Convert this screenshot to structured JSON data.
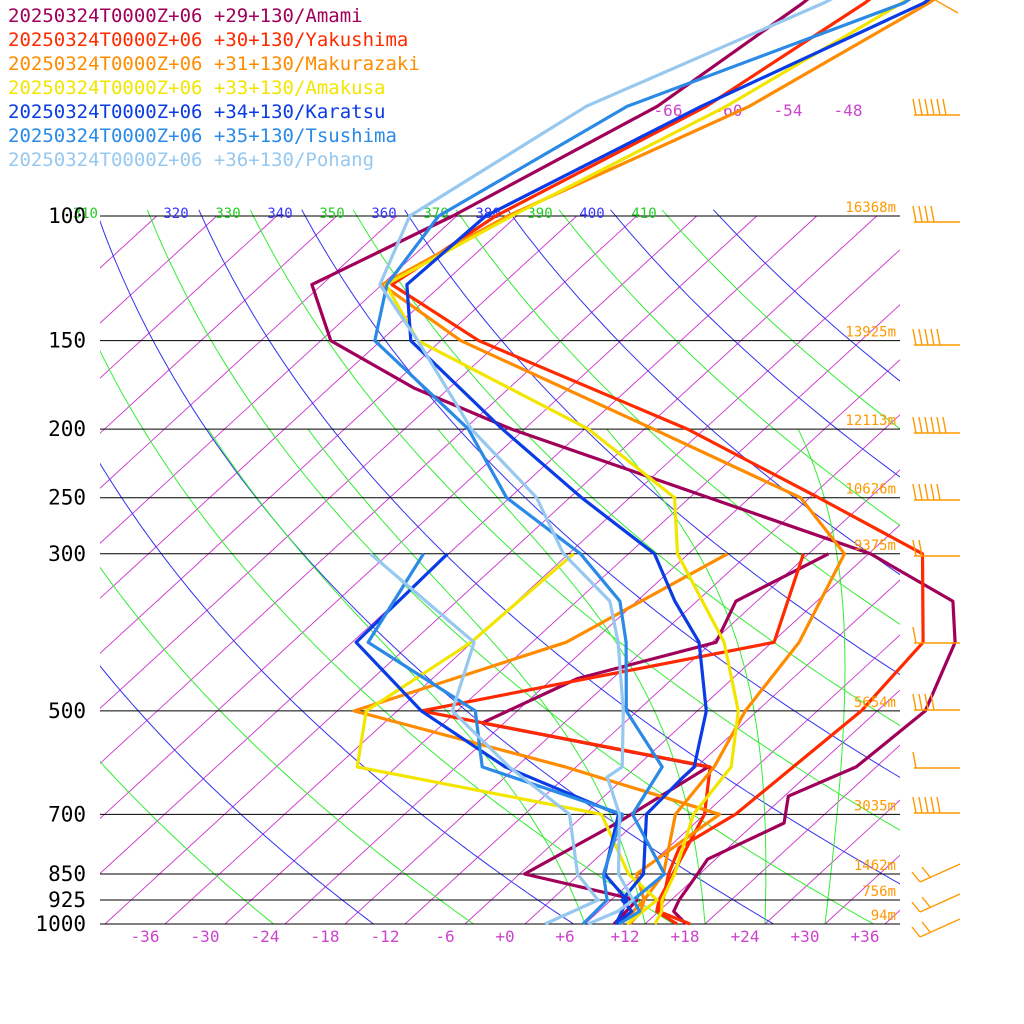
{
  "legend": [
    {
      "text": "20250324T0000Z+06 +29+130/Amami",
      "color": "#a0005a"
    },
    {
      "text": "20250324T0000Z+06 +30+130/Yakushima",
      "color": "#ff2a00"
    },
    {
      "text": "20250324T0000Z+06 +31+130/Makurazaki",
      "color": "#ff8c00"
    },
    {
      "text": "20250324T0000Z+06 +33+130/Amakusa",
      "color": "#f2e600"
    },
    {
      "text": "20250324T0000Z+06 +34+130/Karatsu",
      "color": "#0a3ce6"
    },
    {
      "text": "20250324T0000Z+06 +35+130/Tsushima",
      "color": "#2a8ae6"
    },
    {
      "text": "20250324T0000Z+06 +36+130/Pohang",
      "color": "#96c8f0"
    }
  ],
  "chart_data": {
    "type": "line",
    "title": "",
    "y_axis": {
      "type": "log-pressure",
      "ylim_hpa": [
        1000,
        100
      ]
    },
    "x_axis": {
      "type": "skewed temperature",
      "xlim_c": [
        -40,
        40
      ]
    },
    "pressure_labels": [
      "100",
      "150",
      "200",
      "250",
      "300",
      "500",
      "700",
      "850",
      "925",
      "1000"
    ],
    "pressure_levels": [
      100,
      150,
      200,
      250,
      300,
      500,
      700,
      850,
      925,
      1000
    ],
    "temp_tick_labels": [
      "-36",
      "-30",
      "-24",
      "-18",
      "-12",
      "-6",
      "+0",
      "+6",
      "+12",
      "+18",
      "+24",
      "+30",
      "+36"
    ],
    "temp_ticks": [
      -36,
      -30,
      -24,
      -18,
      -12,
      -6,
      0,
      6,
      12,
      18,
      24,
      30,
      36
    ],
    "upper_isotherm_labels": [
      "-66",
      "-60",
      "-54",
      "-48"
    ],
    "height_labels": [
      {
        "p": 100,
        "text": "16368m"
      },
      {
        "p": 150,
        "text": "13925m"
      },
      {
        "p": 200,
        "text": "12113m"
      },
      {
        "p": 250,
        "text": "10626m"
      },
      {
        "p": 300,
        "text": "9375m"
      },
      {
        "p": 500,
        "text": "5654m"
      },
      {
        "p": 700,
        "text": "3035m"
      },
      {
        "p": 850,
        "text": "1462m"
      },
      {
        "p": 925,
        "text": "756m"
      },
      {
        "p": 1000,
        "text": "94m"
      }
    ],
    "theta_labels": [
      {
        "text": "310",
        "color": "#22cc22"
      },
      {
        "text": "320",
        "color": "#3333ff"
      },
      {
        "text": "330",
        "color": "#22cc22"
      },
      {
        "text": "340",
        "color": "#3333ff"
      },
      {
        "text": "350",
        "color": "#22cc22"
      },
      {
        "text": "360",
        "color": "#3333ff"
      },
      {
        "text": "370",
        "color": "#22cc22"
      },
      {
        "text": "380",
        "color": "#3333ff"
      },
      {
        "text": "390",
        "color": "#22cc22"
      },
      {
        "text": "400",
        "color": "#3333ff"
      },
      {
        "text": "410",
        "color": "#22cc22"
      }
    ],
    "series": [
      {
        "name": "20250324T0000Z+06 +29+130/Amami",
        "color": "#a0005a",
        "T": [
          [
            1000,
            18.1
          ],
          [
            960,
            15.5
          ],
          [
            925,
            14.8
          ],
          [
            850,
            13.8
          ],
          [
            810,
            13.2
          ],
          [
            720,
            16.9
          ],
          [
            660,
            14.4
          ],
          [
            600,
            18
          ],
          [
            500,
            18.8
          ],
          [
            400,
            14.3
          ],
          [
            350,
            9.6
          ],
          [
            300,
            -3.8
          ],
          [
            200,
            -53.3
          ],
          [
            175,
            -67.5
          ],
          [
            150,
            -81
          ],
          [
            125,
            -89
          ],
          [
            100,
            -82.4
          ],
          [
            70,
            -73.9
          ],
          [
            50,
            -70.6
          ],
          [
            40,
            -69.5
          ],
          [
            30,
            -66
          ]
        ],
        "Td": [
          [
            1000,
            10.9
          ],
          [
            925,
            10.6
          ],
          [
            850,
            -3.5
          ],
          [
            720,
            0.2
          ],
          [
            600,
            3.2
          ],
          [
            520,
            -24.2
          ],
          [
            450,
            -19.5
          ],
          [
            400,
            -9.6
          ],
          [
            350,
            -12.1
          ],
          [
            300,
            -8
          ]
        ]
      },
      {
        "name": "20250324T0000Z+06 +30+130/Yakushima",
        "color": "#ff2a00",
        "T": [
          [
            1000,
            18.5
          ],
          [
            960,
            14
          ],
          [
            925,
            13.2
          ],
          [
            850,
            10.9
          ],
          [
            780,
            9.1
          ],
          [
            700,
            11.1
          ],
          [
            500,
            12.4
          ],
          [
            400,
            11.1
          ],
          [
            300,
            1.4
          ],
          [
            250,
            -15.1
          ],
          [
            200,
            -35.7
          ],
          [
            150,
            -66.2
          ],
          [
            125,
            -81
          ],
          [
            100,
            -78.1
          ],
          [
            70,
            -69
          ],
          [
            50,
            -64.4
          ],
          [
            40,
            -63
          ],
          [
            30,
            -58
          ]
        ],
        "Td": [
          [
            1000,
            17.2
          ],
          [
            960,
            13.8
          ],
          [
            925,
            12.8
          ],
          [
            700,
            8
          ],
          [
            600,
            3.4
          ],
          [
            500,
            -31.6
          ],
          [
            400,
            -3.8
          ],
          [
            300,
            -10.5
          ]
        ]
      },
      {
        "name": "20250324T0000Z+06 +31+130/Makurazaki",
        "color": "#ff8c00",
        "T": [
          [
            1000,
            12.5
          ],
          [
            960,
            12.2
          ],
          [
            925,
            11.3
          ],
          [
            850,
            10.4
          ],
          [
            700,
            5.1
          ],
          [
            600,
            3.8
          ],
          [
            500,
            0.8
          ],
          [
            400,
            -1.3
          ],
          [
            300,
            -6.4
          ],
          [
            250,
            -16.9
          ],
          [
            200,
            -39.1
          ],
          [
            150,
            -68
          ],
          [
            125,
            -82
          ],
          [
            100,
            -76.9
          ],
          [
            70,
            -64.7
          ],
          [
            50,
            -58
          ],
          [
            40,
            -55.8
          ],
          [
            30,
            -52
          ]
        ],
        "Td": [
          [
            1000,
            11.6
          ],
          [
            925,
            11.3
          ],
          [
            850,
            7.7
          ],
          [
            700,
            9.5
          ],
          [
            600,
            -11.1
          ],
          [
            500,
            -38.3
          ],
          [
            400,
            -24.6
          ],
          [
            300,
            -18.1
          ]
        ]
      },
      {
        "name": "20250324T0000Z+06 +33+130/Amakusa",
        "color": "#f2e600",
        "T": [
          [
            1000,
            15
          ],
          [
            960,
            14.3
          ],
          [
            925,
            13.1
          ],
          [
            850,
            11.5
          ],
          [
            700,
            6.9
          ],
          [
            600,
            5.5
          ],
          [
            500,
            0.1
          ],
          [
            400,
            -8.8
          ],
          [
            300,
            -23.1
          ],
          [
            250,
            -29.5
          ],
          [
            200,
            -45.6
          ],
          [
            150,
            -72.3
          ],
          [
            125,
            -81.6
          ],
          [
            100,
            -76.5
          ],
          [
            70,
            -67
          ],
          [
            50,
            -60.7
          ],
          [
            40,
            -58
          ],
          [
            30,
            -54
          ]
        ],
        "Td": [
          [
            1000,
            12.2
          ],
          [
            925,
            12.6
          ],
          [
            850,
            6.9
          ],
          [
            700,
            -2.3
          ],
          [
            600,
            -31.9
          ],
          [
            500,
            -37.1
          ],
          [
            400,
            -34.1
          ],
          [
            300,
            -33.5
          ]
        ]
      },
      {
        "name": "20250324T0000Z+06 +34+130/Karatsu",
        "color": "#0a3ce6",
        "T": [
          [
            1000,
            11.1
          ],
          [
            960,
            11.3
          ],
          [
            925,
            9.1
          ],
          [
            850,
            8.4
          ],
          [
            700,
            2.2
          ],
          [
            620,
            1.8
          ],
          [
            600,
            1.8
          ],
          [
            500,
            -3.1
          ],
          [
            400,
            -11.3
          ],
          [
            350,
            -18.2
          ],
          [
            300,
            -25.4
          ],
          [
            250,
            -38.8
          ],
          [
            200,
            -54.2
          ],
          [
            150,
            -73
          ],
          [
            125,
            -79.5
          ],
          [
            100,
            -79.1
          ],
          [
            70,
            -69.5
          ],
          [
            50,
            -58.5
          ],
          [
            40,
            -56.5
          ],
          [
            30,
            -52
          ]
        ],
        "Td": [
          [
            1000,
            11.1
          ],
          [
            925,
            9.6
          ],
          [
            850,
            4.5
          ],
          [
            700,
            -0.6
          ],
          [
            600,
            -17.1
          ],
          [
            500,
            -31.6
          ],
          [
            400,
            -45.6
          ],
          [
            300,
            -46.1
          ]
        ]
      },
      {
        "name": "20250324T0000Z+06 +35+130/Tsushima",
        "color": "#2a8ae6",
        "T": [
          [
            1000,
            11.4
          ],
          [
            960,
            12.1
          ],
          [
            925,
            10.2
          ],
          [
            850,
            10.5
          ],
          [
            700,
            0.8
          ],
          [
            600,
            -1.4
          ],
          [
            500,
            -11.1
          ],
          [
            400,
            -18.6
          ],
          [
            350,
            -23.7
          ],
          [
            300,
            -32.8
          ],
          [
            250,
            -46.3
          ],
          [
            200,
            -57.6
          ],
          [
            150,
            -76.6
          ],
          [
            125,
            -81.5
          ],
          [
            100,
            -83.8
          ],
          [
            70,
            -76.9
          ],
          [
            50,
            -60.5
          ],
          [
            40,
            -57.5
          ],
          [
            30,
            -53
          ]
        ],
        "Td": [
          [
            1000,
            7.8
          ],
          [
            925,
            7.6
          ],
          [
            850,
            4.4
          ],
          [
            700,
            -0.2
          ],
          [
            600,
            -19.4
          ],
          [
            500,
            -26.2
          ],
          [
            400,
            -44.4
          ],
          [
            300,
            -48.5
          ]
        ]
      },
      {
        "name": "20250324T0000Z+06 +36+130/Pohang",
        "color": "#96c8f0",
        "T": [
          [
            1000,
            8.3
          ],
          [
            960,
            9.9
          ],
          [
            925,
            10.2
          ],
          [
            850,
            5.9
          ],
          [
            700,
            -0.5
          ],
          [
            620,
            -5.8
          ],
          [
            600,
            -5.4
          ],
          [
            500,
            -11.4
          ],
          [
            400,
            -19.4
          ],
          [
            350,
            -24.7
          ],
          [
            300,
            -34.5
          ],
          [
            250,
            -43.3
          ],
          [
            200,
            -57.3
          ],
          [
            150,
            -72.3
          ],
          [
            125,
            -82.2
          ],
          [
            100,
            -86.7
          ],
          [
            70,
            -81
          ],
          [
            50,
            -68.5
          ],
          [
            40,
            -62.8
          ],
          [
            30,
            -58
          ]
        ],
        "Td": [
          [
            1000,
            4
          ],
          [
            925,
            6.7
          ],
          [
            850,
            1.8
          ],
          [
            700,
            -5.5
          ],
          [
            600,
            -16.7
          ],
          [
            500,
            -28.5
          ],
          [
            400,
            -33.8
          ],
          [
            300,
            -53.8
          ]
        ]
      }
    ],
    "wind_barbs": {
      "color": "#ff9900"
    }
  }
}
